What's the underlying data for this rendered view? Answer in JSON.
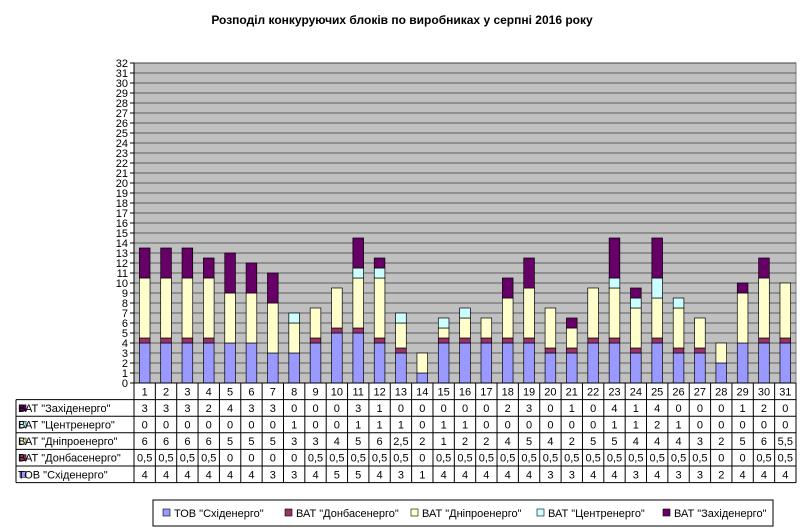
{
  "chart_data": {
    "type": "bar",
    "stacked": true,
    "title": "Розподіл конкуруючих  блоків по виробниках  у серпні 2016 року",
    "xlabel": "",
    "ylabel": "",
    "ylim": [
      0,
      32
    ],
    "yticks": [
      "0",
      "1",
      "2",
      "3",
      "4",
      "5",
      "6",
      "7",
      "8",
      "9",
      "10",
      "11",
      "12",
      "13",
      "14",
      "15",
      "16",
      "17",
      "18",
      "19",
      "20",
      "21",
      "22",
      "23",
      "24",
      "25",
      "26",
      "27",
      "28",
      "29",
      "30",
      "31",
      "32"
    ],
    "grid": true,
    "legend_position": "bottom",
    "categories": [
      "1",
      "2",
      "3",
      "4",
      "5",
      "6",
      "7",
      "8",
      "9",
      "10",
      "11",
      "12",
      "13",
      "14",
      "15",
      "16",
      "17",
      "18",
      "19",
      "20",
      "21",
      "22",
      "23",
      "24",
      "25",
      "26",
      "27",
      "28",
      "29",
      "30",
      "31"
    ],
    "series": [
      {
        "name": "ТОВ \"Східенерго\"",
        "color": "#9999ff",
        "values": [
          4,
          4,
          4,
          4,
          4,
          4,
          3,
          3,
          4,
          5,
          5,
          4,
          3,
          1,
          4,
          4,
          4,
          4,
          4,
          3,
          3,
          4,
          4,
          3,
          4,
          3,
          3,
          2,
          4,
          4,
          4
        ],
        "labels": [
          "4",
          "4",
          "4",
          "4",
          "4",
          "4",
          "3",
          "3",
          "4",
          "5",
          "5",
          "4",
          "3",
          "1",
          "4",
          "4",
          "4",
          "4",
          "4",
          "3",
          "3",
          "4",
          "4",
          "3",
          "4",
          "3",
          "3",
          "2",
          "4",
          "4",
          "4"
        ]
      },
      {
        "name": "ВАТ \"Донбасенерго\"",
        "color": "#993366",
        "values": [
          0.5,
          0.5,
          0.5,
          0.5,
          0,
          0,
          0,
          0,
          0.5,
          0.5,
          0.5,
          0.5,
          0.5,
          0,
          0.5,
          0.5,
          0.5,
          0.5,
          0.5,
          0.5,
          0.5,
          0.5,
          0.5,
          0.5,
          0.5,
          0.5,
          0.5,
          0,
          0,
          0.5,
          0.5
        ],
        "labels": [
          "0,5",
          "0,5",
          "0,5",
          "0,5",
          "0",
          "0",
          "0",
          "0",
          "0,5",
          "0,5",
          "0,5",
          "0,5",
          "0,5",
          "0",
          "0,5",
          "0,5",
          "0,5",
          "0,5",
          "0,5",
          "0,5",
          "0,5",
          "0,5",
          "0,5",
          "0,5",
          "0,5",
          "0,5",
          "0,5",
          "0",
          "0",
          "0,5",
          "0,5"
        ]
      },
      {
        "name": "ВАТ \"Дніпроенерго\"",
        "color": "#ffffcc",
        "values": [
          6,
          6,
          6,
          6,
          5,
          5,
          5,
          3,
          3,
          4,
          5,
          6,
          2.5,
          2,
          1,
          2,
          2,
          4,
          5,
          4,
          2,
          5,
          5,
          4,
          4,
          4,
          3,
          2,
          5,
          6,
          5.5
        ],
        "labels": [
          "6",
          "6",
          "6",
          "6",
          "5",
          "5",
          "5",
          "3",
          "3",
          "4",
          "5",
          "6",
          "2,5",
          "2",
          "1",
          "2",
          "2",
          "4",
          "5",
          "4",
          "2",
          "5",
          "5",
          "4",
          "4",
          "4",
          "3",
          "2",
          "5",
          "6",
          "5,5"
        ]
      },
      {
        "name": "ВАТ \"Центренерго\"",
        "color": "#ccffff",
        "values": [
          0,
          0,
          0,
          0,
          0,
          0,
          0,
          1,
          0,
          0,
          1,
          1,
          1,
          0,
          1,
          1,
          0,
          0,
          0,
          0,
          0,
          0,
          1,
          1,
          2,
          1,
          0,
          0,
          0,
          0,
          0
        ],
        "labels": [
          "0",
          "0",
          "0",
          "0",
          "0",
          "0",
          "0",
          "1",
          "0",
          "0",
          "1",
          "1",
          "1",
          "0",
          "1",
          "1",
          "0",
          "0",
          "0",
          "0",
          "0",
          "0",
          "1",
          "1",
          "2",
          "1",
          "0",
          "0",
          "0",
          "0",
          "0"
        ]
      },
      {
        "name": "ВАТ \"Західенерго\"",
        "color": "#660066",
        "values": [
          3,
          3,
          3,
          2,
          4,
          3,
          3,
          0,
          0,
          0,
          3,
          1,
          0,
          0,
          0,
          0,
          0,
          2,
          3,
          0,
          1,
          0,
          4,
          1,
          4,
          0,
          0,
          0,
          1,
          2,
          0
        ],
        "labels": [
          "3",
          "3",
          "3",
          "2",
          "4",
          "3",
          "3",
          "0",
          "0",
          "0",
          "3",
          "1",
          "0",
          "0",
          "0",
          "0",
          "0",
          "2",
          "3",
          "0",
          "1",
          "0",
          "4",
          "1",
          "4",
          "0",
          "0",
          "0",
          "1",
          "2",
          "0"
        ]
      }
    ],
    "table_row_order": [
      4,
      3,
      2,
      1,
      0
    ]
  }
}
